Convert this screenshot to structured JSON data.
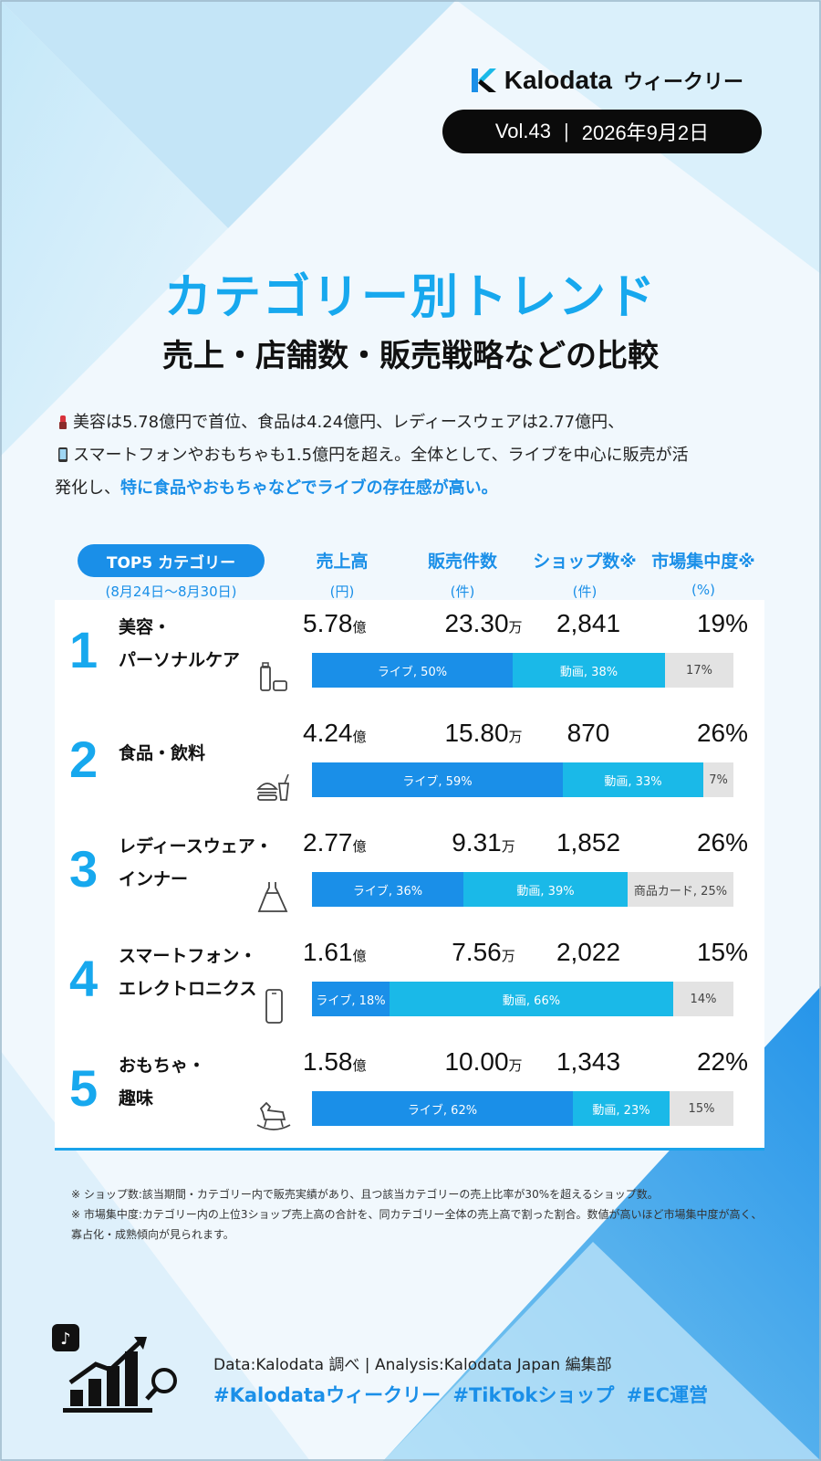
{
  "header": {
    "brand": "Kalodata",
    "series": "ウィークリー",
    "vol": "Vol.43",
    "separator": "|",
    "date": "2026年9月2日"
  },
  "title": "カテゴリー別トレンド",
  "subtitle": "売上・店舗数・販売戦略などの比較",
  "intro": {
    "line1": "美容は5.78億円で首位、食品は4.24億円、レディースウェアは2.77億円、",
    "line2": "スマートフォンやおもちゃも1.5億円を超え。全体として、ライブを中心に販売が活",
    "line3_plain": "発化し、",
    "line3_highlight": "特に食品やおもちゃなどでライブの存在感が高い。"
  },
  "table_header": {
    "badge": "TOP5 カテゴリー",
    "range": "(8月24日〜8月30日)",
    "columns": [
      {
        "label": "売上高",
        "unit": "(円)"
      },
      {
        "label": "販売件数",
        "unit": "(件)"
      },
      {
        "label": "ショップ数※",
        "unit": "(件)"
      },
      {
        "label": "市場集中度※",
        "unit": "(%)"
      }
    ]
  },
  "chart_data": {
    "type": "table",
    "title": "TOP5 カテゴリー",
    "period": "(8月24日〜8月30日)",
    "columns": [
      "売上高",
      "販売件数",
      "ショップ数※",
      "市場集中度※"
    ],
    "units": [
      "(円)",
      "(件)",
      "(件)",
      "(%)"
    ],
    "rows": [
      {
        "rank": "1",
        "category_line1": "美容・",
        "category_line2": "パーソナルケア",
        "sales_num": "5.78",
        "sales_unit": "億",
        "items_num": "23.30",
        "items_unit": "万",
        "shops": "2,841",
        "concentration": "19%",
        "channels": [
          {
            "label": "ライブ, 50%",
            "share": 50,
            "kind": "live"
          },
          {
            "label": "動画, 38%",
            "share": 38,
            "kind": "video"
          },
          {
            "label": "17%",
            "share": 17,
            "kind": "other"
          }
        ]
      },
      {
        "rank": "2",
        "category_line1": "食品・飲料",
        "category_line2": "",
        "sales_num": "4.24",
        "sales_unit": "億",
        "items_num": "15.80",
        "items_unit": "万",
        "shops": "870",
        "concentration": "26%",
        "channels": [
          {
            "label": "ライブ, 59%",
            "share": 59,
            "kind": "live"
          },
          {
            "label": "動画, 33%",
            "share": 33,
            "kind": "video"
          },
          {
            "label": "7%",
            "share": 7,
            "kind": "other"
          }
        ]
      },
      {
        "rank": "3",
        "category_line1": "レディースウェア・",
        "category_line2": "インナー",
        "sales_num": "2.77",
        "sales_unit": "億",
        "items_num": "9.31",
        "items_unit": "万",
        "shops": "1,852",
        "concentration": "26%",
        "channels": [
          {
            "label": "ライブ, 36%",
            "share": 36,
            "kind": "live"
          },
          {
            "label": "動画, 39%",
            "share": 39,
            "kind": "video"
          },
          {
            "label": "商品カード, 25%",
            "share": 25,
            "kind": "other"
          }
        ]
      },
      {
        "rank": "4",
        "category_line1": "スマートフォン・",
        "category_line2": "エレクトロニクス",
        "sales_num": "1.61",
        "sales_unit": "億",
        "items_num": "7.56",
        "items_unit": "万",
        "shops": "2,022",
        "concentration": "15%",
        "channels": [
          {
            "label": "ライブ, 18%",
            "share": 18,
            "kind": "live"
          },
          {
            "label": "動画, 66%",
            "share": 66,
            "kind": "video"
          },
          {
            "label": "14%",
            "share": 14,
            "kind": "other"
          }
        ]
      },
      {
        "rank": "5",
        "category_line1": "おもちゃ・",
        "category_line2": "趣味",
        "sales_num": "1.58",
        "sales_unit": "億",
        "items_num": "10.00",
        "items_unit": "万",
        "shops": "1,343",
        "concentration": "22%",
        "channels": [
          {
            "label": "ライブ, 62%",
            "share": 62,
            "kind": "live"
          },
          {
            "label": "動画, 23%",
            "share": 23,
            "kind": "video"
          },
          {
            "label": "15%",
            "share": 15,
            "kind": "other"
          }
        ]
      }
    ]
  },
  "notes": {
    "n1": "※ ショップ数:該当期間・カテゴリー内で販売実績があり、且つ該当カテゴリーの売上比率が30%を超えるショップ数。",
    "n2": "※ 市場集中度:カテゴリー内の上位3ショップ売上高の合計を、同カテゴリー全体の売上高で割った割合。数値が高いほど市場集中度が高く、",
    "n3": "寡占化・成熟傾向が見られます。"
  },
  "footer": {
    "credit": "Data:Kalodata 調べ | Analysis:Kalodata Japan 編集部",
    "tags": "#Kalodataウィークリー #TikTokショップ #EC運営"
  },
  "colors": {
    "accent": "#1a8fe8",
    "title": "#17a8ee",
    "live": "#1a8fe8",
    "video": "#1ab9e8",
    "other": "#e3e3e3"
  }
}
